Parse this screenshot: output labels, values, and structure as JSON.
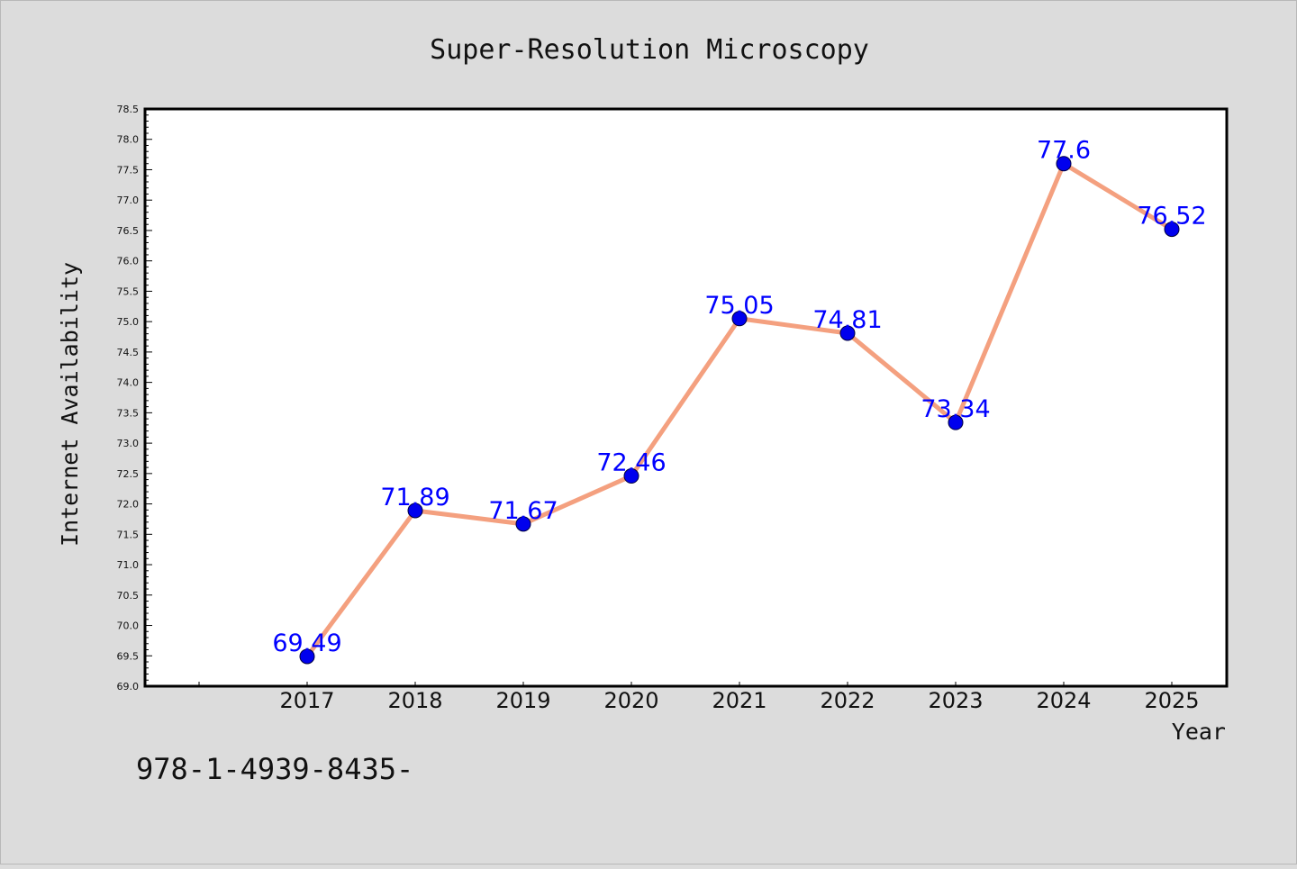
{
  "chart_data": {
    "type": "line",
    "title": "Super-Resolution Microscopy",
    "xlabel": "Year",
    "ylabel": "Internet Availability",
    "categories": [
      "2017",
      "2018",
      "2019",
      "2020",
      "2021",
      "2022",
      "2023",
      "2024",
      "2025"
    ],
    "series": [
      {
        "values": [
          69.49,
          71.89,
          71.67,
          72.46,
          75.05,
          74.81,
          73.34,
          77.6,
          76.52
        ],
        "data_labels": [
          "69.49",
          "71.89",
          "71.67",
          "72.46",
          "75.05",
          "74.81",
          "73.34",
          "77.6",
          "76.52"
        ]
      }
    ],
    "ylim": [
      69.0,
      78.5
    ],
    "y_ticks": [
      "69.0",
      "69.5",
      "70.0",
      "70.5",
      "71.0",
      "71.5",
      "72.0",
      "72.5",
      "73.0",
      "73.5",
      "74.0",
      "74.5",
      "75.0",
      "75.5",
      "76.0",
      "76.5",
      "77.0",
      "77.5",
      "78.0",
      "78.5"
    ],
    "grid": false,
    "legend": "none",
    "colors": {
      "line": "#f4a07f",
      "marker": "#0000ee",
      "data_label": "#0000ff",
      "background": "#dcdcdc",
      "plot_background": "#ffffff"
    }
  },
  "footer": {
    "text": "978-1-4939-8435-"
  }
}
